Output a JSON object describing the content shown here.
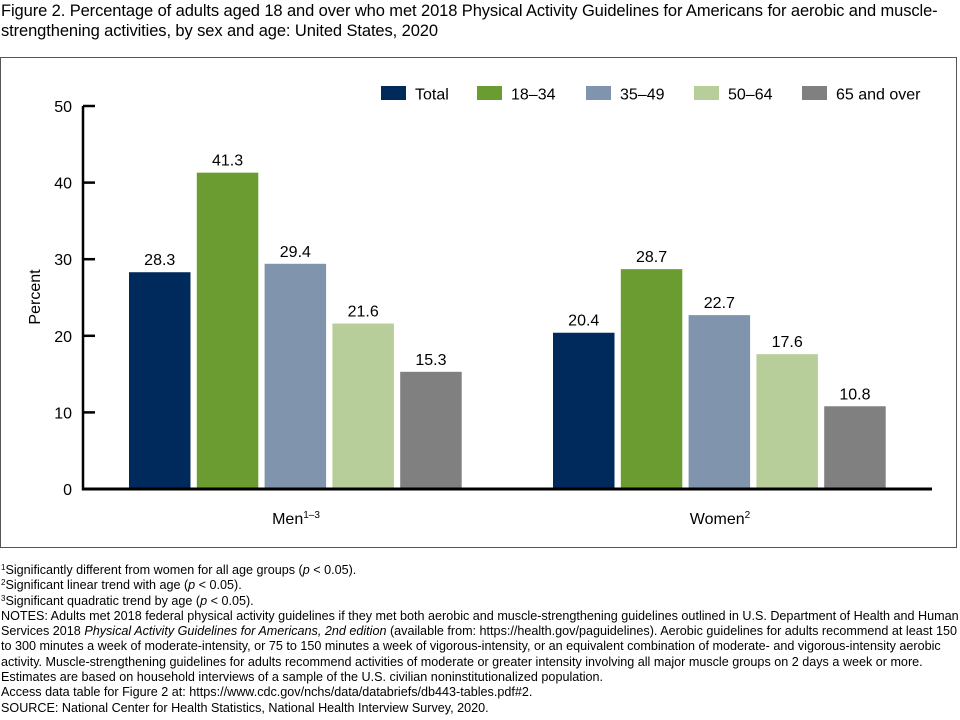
{
  "title": "Figure 2. Percentage of adults aged 18 and over who met 2018 Physical Activity Guidelines for Americans for aerobic and muscle-strengthening activities, by sex and age: United States, 2020",
  "chart_data": {
    "type": "bar",
    "title": "Percentage of adults aged 18 and over who met 2018 Physical Activity Guidelines for Americans for aerobic and muscle-strengthening activities, by sex and age: United States, 2020",
    "xlabel": "",
    "ylabel": "Percent",
    "ylim": [
      0,
      50
    ],
    "yticks": [
      0,
      10,
      20,
      30,
      40,
      50
    ],
    "grid": false,
    "legend_position": "top-right",
    "categories": [
      {
        "label": "Men",
        "superscript": "1–3"
      },
      {
        "label": "Women",
        "superscript": "2"
      }
    ],
    "series": [
      {
        "name": "Total",
        "color": "#002a5c",
        "values": [
          28.3,
          20.4
        ]
      },
      {
        "name": "18–34",
        "color": "#6b9c32",
        "values": [
          41.3,
          28.7
        ]
      },
      {
        "name": "35–49",
        "color": "#8094ad",
        "values": [
          29.4,
          22.7
        ]
      },
      {
        "name": "50–64",
        "color": "#b7ce9a",
        "values": [
          21.6,
          17.6
        ]
      },
      {
        "name": "65 and over",
        "color": "#808080",
        "values": [
          15.3,
          10.8
        ]
      }
    ]
  },
  "footnotes": [
    {
      "mark": "1",
      "text": "Significantly different from women for all age groups (",
      "p": "p",
      "tail": " < 0.05)."
    },
    {
      "mark": "2",
      "text": "Significant linear trend with age (",
      "p": "p",
      "tail": " < 0.05)."
    },
    {
      "mark": "3",
      "text": "Significant quadratic trend by age (",
      "p": "p",
      "tail": " < 0.05)."
    }
  ],
  "notes": {
    "prefix": "NOTES: Adults met 2018 federal physical activity guidelines if they met both aerobic and muscle-strengthening guidelines outlined in U.S. Department of Health and Human Services 2018 ",
    "italic": "Physical Activity Guidelines for Americans, 2nd edition",
    "suffix": " (available from: https://health.gov/paguidelines). Aerobic guidelines for adults recommend at least 150 to 300 minutes a week of moderate-intensity, or 75 to 150 minutes a week of vigorous-intensity, or an equivalent combination of moderate- and vigorous-intensity aerobic activity. Muscle-strengthening guidelines for adults recommend activities of moderate or greater intensity involving all major muscle groups on 2 days a week or more. Estimates are based on household interviews of a sample of the U.S. civilian noninstitutionalized population.",
    "access": "Access data table for Figure 2 at: https://www.cdc.gov/nchs/data/databriefs/db443-tables.pdf#2.",
    "source": "SOURCE: National Center for Health Statistics, National Health Interview Survey, 2020."
  }
}
